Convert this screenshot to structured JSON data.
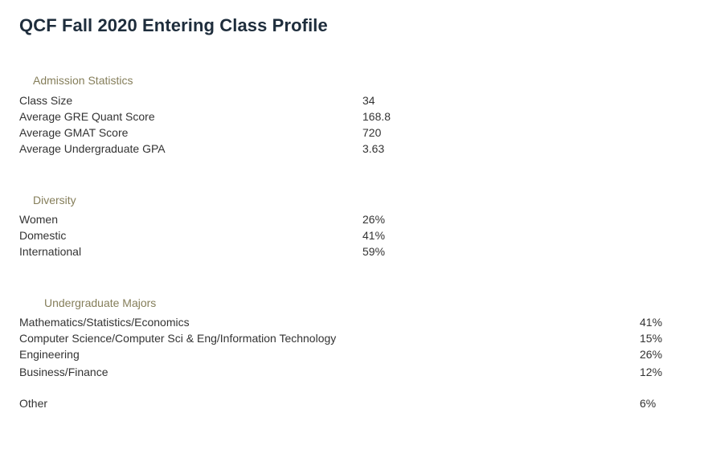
{
  "page": {
    "title": "QCF Fall 2020 Entering Class Profile"
  },
  "admission": {
    "heading": "Admission Statistics",
    "rows": [
      {
        "label": "Class Size",
        "value": "34"
      },
      {
        "label": "Average GRE Quant Score",
        "value": "168.8"
      },
      {
        "label": "Average GMAT Score",
        "value": "720"
      },
      {
        "label": "Average Undergraduate GPA",
        "value": "3.63"
      }
    ]
  },
  "diversity": {
    "heading": "Diversity",
    "rows": [
      {
        "label": "Women",
        "value": "26%"
      },
      {
        "label": "Domestic",
        "value": "41%"
      },
      {
        "label": "International",
        "value": "59%"
      }
    ]
  },
  "majors": {
    "heading": "Undergraduate Majors",
    "rows": [
      {
        "label": "Mathematics/Statistics/Economics",
        "value": "41%"
      },
      {
        "label": "Computer Science/Computer Sci & Eng/Information Technology",
        "value": "15%"
      },
      {
        "label": "Engineering",
        "value": "26%"
      },
      {
        "label": "Business/Finance",
        "value": "12%"
      },
      {
        "label": "Other",
        "value": "6%"
      }
    ]
  }
}
